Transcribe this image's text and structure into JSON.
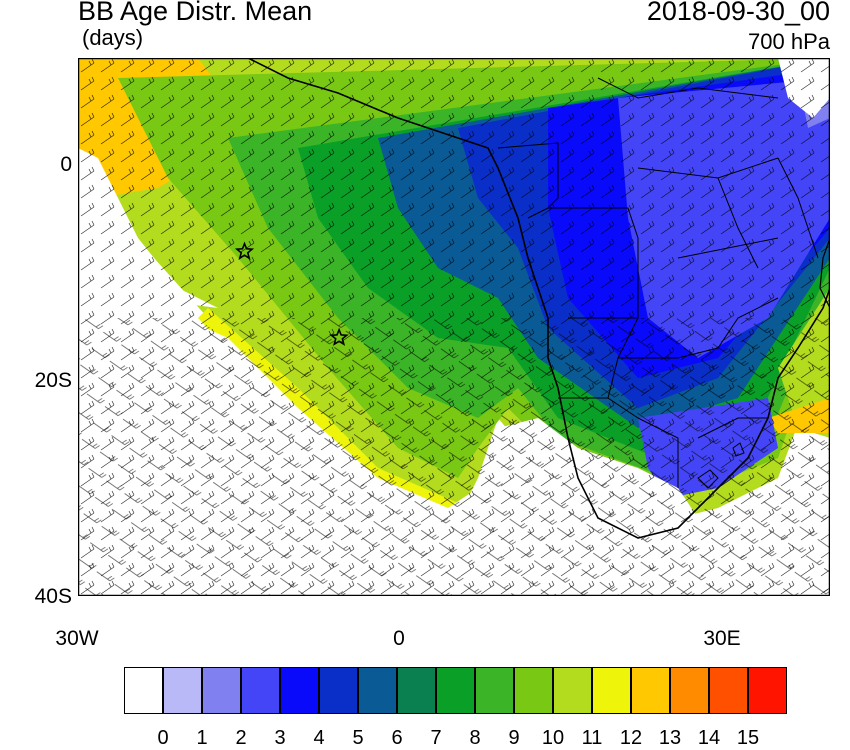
{
  "header": {
    "title": "BB Age Distr. Mean",
    "units": "(days)",
    "datetime": "2018-09-30_00",
    "level": "700 hPa"
  },
  "axes": {
    "lat_labels": [
      {
        "text": "0",
        "lat": 0
      },
      {
        "text": "20S",
        "lat": -20
      },
      {
        "text": "40S",
        "lat": -40
      }
    ],
    "lon_labels": [
      {
        "text": "30W",
        "lon": -30
      },
      {
        "text": "0",
        "lon": 0
      },
      {
        "text": "30E",
        "lon": 30
      }
    ],
    "lon_range": [
      -30,
      40
    ],
    "lat_range": [
      -40,
      10
    ]
  },
  "markers": [
    {
      "name": "star-marker-north",
      "lon": -14.5,
      "lat": -8
    },
    {
      "name": "star-marker-south",
      "lon": -5.7,
      "lat": -16
    }
  ],
  "colorbar": {
    "labels": [
      "0",
      "1",
      "2",
      "3",
      "4",
      "5",
      "6",
      "7",
      "8",
      "9",
      "10",
      "11",
      "12",
      "13",
      "14",
      "15"
    ],
    "colors": [
      "#ffffff",
      "#b9b9f7",
      "#8080f0",
      "#4545f8",
      "#0a0afa",
      "#0a2ec8",
      "#0a5a96",
      "#0a8050",
      "#0aa028",
      "#3cb428",
      "#78c814",
      "#b4dc1e",
      "#eef50a",
      "#ffc800",
      "#ff8c00",
      "#ff5000",
      "#ff1400"
    ]
  }
}
